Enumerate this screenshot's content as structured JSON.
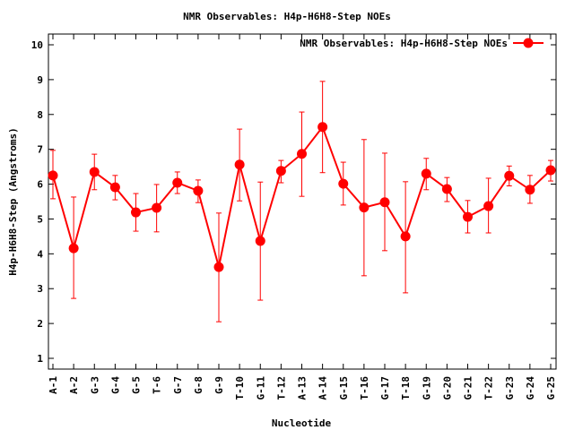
{
  "chart_data": {
    "type": "line",
    "title": "NMR Observables: H4p-H6H8-Step NOEs",
    "xlabel": "Nucleotide",
    "ylabel": "H4p-H6H8-Step (Angstroms)",
    "ylim": [
      0.75,
      10.3
    ],
    "yticks": [
      "1",
      "2",
      "3",
      "4",
      "5",
      "6",
      "7",
      "8",
      "9",
      "10"
    ],
    "grid": false,
    "legend": {
      "position": "top-right",
      "entries": [
        "NMR Observables: H4p-H6H8-Step NOEs"
      ]
    },
    "series_color": "#ff0000",
    "categories": [
      "A-1",
      "A-2",
      "G-3",
      "G-4",
      "G-5",
      "T-6",
      "G-7",
      "G-8",
      "G-9",
      "T-10",
      "G-11",
      "T-12",
      "A-13",
      "A-14",
      "G-15",
      "T-16",
      "G-17",
      "T-18",
      "G-19",
      "G-20",
      "G-21",
      "T-22",
      "G-23",
      "G-24",
      "G-25"
    ],
    "series": [
      {
        "name": "NMR Observables: H4p-H6H8-Step NOEs",
        "values": [
          6.25,
          4.16,
          6.35,
          5.91,
          5.19,
          5.32,
          6.04,
          5.81,
          3.62,
          6.56,
          4.37,
          6.38,
          6.87,
          7.64,
          6.01,
          5.33,
          5.48,
          4.5,
          6.3,
          5.86,
          5.06,
          5.37,
          6.24,
          5.84,
          6.4
        ],
        "err_low": [
          5.58,
          2.72,
          5.84,
          5.55,
          4.65,
          4.63,
          5.73,
          5.47,
          2.05,
          5.52,
          2.67,
          6.04,
          5.65,
          6.33,
          5.4,
          3.37,
          4.09,
          2.88,
          5.84,
          5.5,
          4.6,
          4.6,
          5.95,
          5.45,
          6.09
        ],
        "err_high": [
          6.97,
          5.63,
          6.86,
          6.25,
          5.73,
          5.99,
          6.35,
          6.12,
          5.17,
          7.58,
          6.06,
          6.68,
          8.07,
          8.95,
          6.63,
          7.28,
          6.89,
          6.07,
          6.74,
          6.19,
          5.53,
          6.17,
          6.52,
          6.25,
          6.68
        ]
      }
    ]
  }
}
